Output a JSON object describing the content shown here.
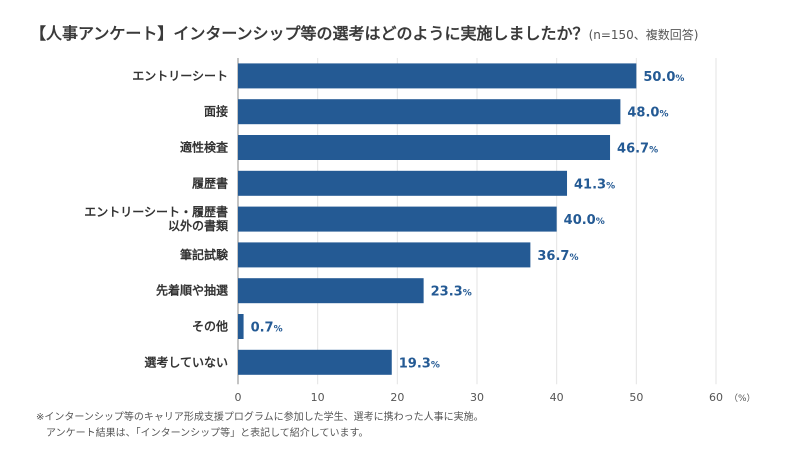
{
  "title": "【人事アンケート】インターンシップ等の選考はどのように実施しましたか？",
  "title_note": "(n=150、複数回答)",
  "footnotes": [
    "※インターンシップ等のキャリア形成支援プログラムに参加した学生、選考に携わった人事に実施。",
    "アンケート結果は、「インターンシップ等」と表記して紹介しています。"
  ],
  "chart_data": {
    "type": "bar",
    "orientation": "horizontal",
    "categories": [
      [
        "エントリーシート"
      ],
      [
        "面接"
      ],
      [
        "適性検査"
      ],
      [
        "履歴書"
      ],
      [
        "エントリーシート・履歴書",
        "以外の書類"
      ],
      [
        "筆記試験"
      ],
      [
        "先着順や抽選"
      ],
      [
        "その他"
      ],
      [
        "選考していない"
      ]
    ],
    "values": [
      50.0,
      48.0,
      46.7,
      41.3,
      40.0,
      36.7,
      23.3,
      0.7,
      19.3
    ],
    "value_labels": [
      "50.0",
      "48.0",
      "46.7",
      "41.3",
      "40.0",
      "36.7",
      "23.3",
      "0.7",
      "19.3"
    ],
    "value_unit": "%",
    "xlim": [
      0,
      60
    ],
    "xticks": [
      0,
      10,
      20,
      30,
      40,
      50,
      60
    ],
    "x_unit_label": "（%）",
    "grid": true,
    "bar_color": "#245a94",
    "label_color": "#245a94",
    "grid_color": "#e3e3e3"
  }
}
